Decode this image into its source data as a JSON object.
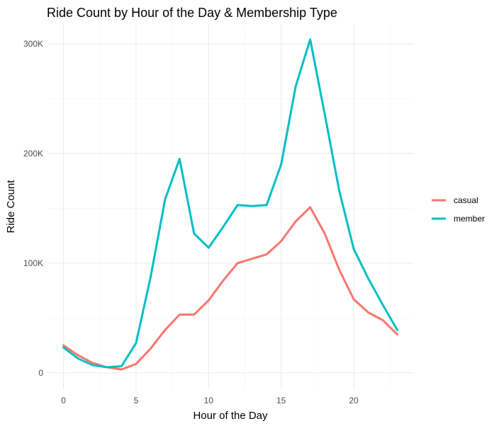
{
  "chart_data": {
    "type": "line",
    "title": "Ride Count by Hour of the Day & Membership Type",
    "xlabel": "Hour of the Day",
    "ylabel": "Ride Count",
    "xlim": [
      -1.15,
      24.15
    ],
    "ylim": [
      -15000,
      318000
    ],
    "x_ticks": [
      0,
      5,
      10,
      15,
      20
    ],
    "y_ticks": [
      0,
      100000,
      200000,
      300000
    ],
    "y_tick_labels": [
      "0",
      "100K",
      "200K",
      "300K"
    ],
    "grid": true,
    "legend_position": "right",
    "x": [
      0,
      1,
      2,
      3,
      4,
      5,
      6,
      7,
      8,
      9,
      10,
      11,
      12,
      13,
      14,
      15,
      16,
      17,
      18,
      19,
      20,
      21,
      22,
      23
    ],
    "series": [
      {
        "name": "casual",
        "color": "#F8766D",
        "values": [
          25000,
          16000,
          9000,
          5000,
          3000,
          8000,
          22000,
          39000,
          53000,
          53000,
          66000,
          84000,
          100000,
          104000,
          108000,
          120000,
          138000,
          151000,
          127000,
          94000,
          67000,
          55000,
          48000,
          35000
        ]
      },
      {
        "name": "member",
        "color": "#00BFC4",
        "values": [
          23000,
          13000,
          7000,
          5000,
          6000,
          27000,
          87000,
          158000,
          195000,
          127000,
          114000,
          133000,
          153000,
          152000,
          153000,
          190000,
          261000,
          304000,
          236000,
          166000,
          113000,
          86000,
          62000,
          39000
        ]
      }
    ]
  }
}
